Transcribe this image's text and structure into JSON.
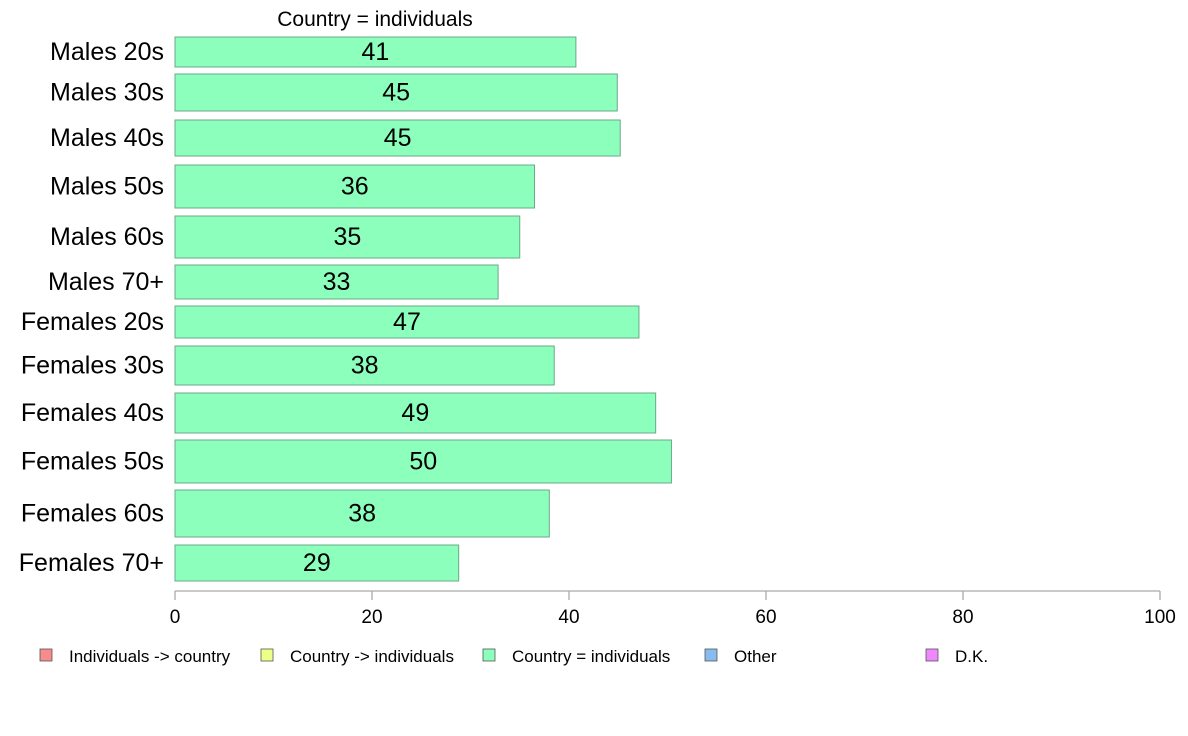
{
  "chart_data": {
    "type": "bar",
    "orientation": "horizontal",
    "title": "Country = individuals",
    "categories": [
      "Males 20s",
      "Males 30s",
      "Males 40s",
      "Males 50s",
      "Males 60s",
      "Males 70+",
      "Females 20s",
      "Females 30s",
      "Females 40s",
      "Females 50s",
      "Females 60s",
      "Females 70+"
    ],
    "values": [
      40.7,
      44.9,
      45.2,
      36.5,
      35.0,
      32.8,
      47.1,
      38.5,
      48.8,
      50.4,
      38.0,
      28.8
    ],
    "data_labels": [
      "41",
      "45",
      "45",
      "36",
      "35",
      "33",
      "47",
      "38",
      "49",
      "50",
      "38",
      "29"
    ],
    "xlim": [
      0,
      100
    ],
    "xticks": [
      0,
      20,
      40,
      60,
      80,
      100
    ],
    "grid": false,
    "bar_color": "#8cffbc",
    "bar_edge_color": "#6aa888",
    "axis_color": "#aaaaaa",
    "legend": {
      "position": "bottom",
      "entries": [
        {
          "label": "Individuals -> country",
          "color": "#f78c8c"
        },
        {
          "label": "Country -> individuals",
          "color": "#eeff88"
        },
        {
          "label": "Country = individuals",
          "color": "#8cffbc"
        },
        {
          "label": "Other",
          "color": "#88bbf0"
        },
        {
          "label": "D.K.",
          "color": "#ee88ff"
        }
      ]
    }
  }
}
